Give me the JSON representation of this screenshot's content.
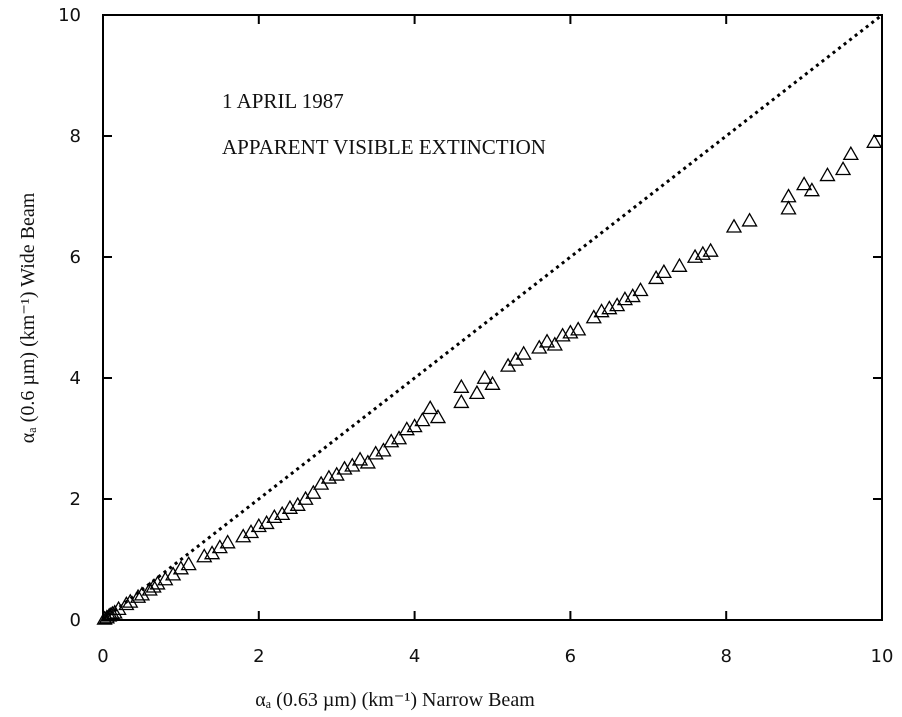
{
  "chart_data": {
    "type": "scatter",
    "annotations": [
      "1 APRIL 1987",
      "APPARENT VISIBLE EXTINCTION"
    ],
    "xlabel": "αₐ (0.63 µm) (km⁻¹)    Narrow Beam",
    "ylabel": "αₐ (0.6 µm) (km⁻¹)    Wide Beam",
    "marker": "open-triangle",
    "color": "#000000",
    "x": [
      0.02,
      0.05,
      0.08,
      0.1,
      0.12,
      0.15,
      0.2,
      0.3,
      0.35,
      0.45,
      0.5,
      0.6,
      0.65,
      0.7,
      0.8,
      0.9,
      1.0,
      1.1,
      1.3,
      1.4,
      1.5,
      1.6,
      1.8,
      1.9,
      2.0,
      2.1,
      2.2,
      2.3,
      2.4,
      2.5,
      2.6,
      2.7,
      2.8,
      2.9,
      3.0,
      3.1,
      3.2,
      3.3,
      3.4,
      3.5,
      3.6,
      3.7,
      3.8,
      3.9,
      4.0,
      4.1,
      4.2,
      4.3,
      4.6,
      4.6,
      4.8,
      4.9,
      5.0,
      5.2,
      5.3,
      5.4,
      5.6,
      5.7,
      5.8,
      5.9,
      6.0,
      6.1,
      6.3,
      6.4,
      6.5,
      6.6,
      6.7,
      6.8,
      6.9,
      7.1,
      7.2,
      7.4,
      7.6,
      7.7,
      7.8,
      8.1,
      8.3,
      8.8,
      8.8,
      9.0,
      9.1,
      9.3,
      9.5,
      9.6,
      9.9
    ],
    "y": [
      0.02,
      0.04,
      0.07,
      0.08,
      0.1,
      0.12,
      0.18,
      0.26,
      0.3,
      0.38,
      0.42,
      0.5,
      0.55,
      0.6,
      0.67,
      0.75,
      0.85,
      0.92,
      1.05,
      1.1,
      1.2,
      1.28,
      1.38,
      1.45,
      1.55,
      1.6,
      1.7,
      1.75,
      1.85,
      1.9,
      2.0,
      2.1,
      2.25,
      2.35,
      2.4,
      2.5,
      2.55,
      2.65,
      2.6,
      2.75,
      2.8,
      2.95,
      3.0,
      3.15,
      3.2,
      3.3,
      3.5,
      3.35,
      3.6,
      3.85,
      3.75,
      4.0,
      3.9,
      4.2,
      4.3,
      4.4,
      4.5,
      4.6,
      4.55,
      4.7,
      4.75,
      4.8,
      5.0,
      5.1,
      5.15,
      5.2,
      5.3,
      5.35,
      5.45,
      5.65,
      5.75,
      5.85,
      6.0,
      6.05,
      6.1,
      6.5,
      6.6,
      6.8,
      7.0,
      7.2,
      7.1,
      7.35,
      7.45,
      7.7,
      7.9
    ],
    "reference_line": {
      "x": [
        0,
        10
      ],
      "y": [
        0,
        10
      ],
      "style": "dotted"
    },
    "xlim": [
      0,
      10
    ],
    "ylim": [
      0,
      10
    ],
    "xticks": [
      0,
      2,
      4,
      6,
      8,
      10
    ],
    "yticks": [
      0,
      2,
      4,
      6,
      8,
      10
    ]
  }
}
